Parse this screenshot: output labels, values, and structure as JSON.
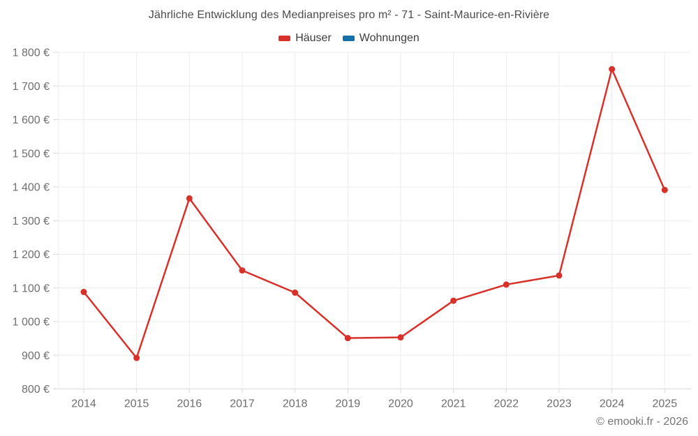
{
  "page": {
    "footer": "© emooki.fr - 2026"
  },
  "chart_data": {
    "type": "line",
    "title": "Jährliche Entwicklung des Medianpreises pro m² - 71 - Saint-Maurice-en-Rivière",
    "xlabel": "",
    "ylabel": "",
    "categories": [
      "2014",
      "2015",
      "2016",
      "2017",
      "2018",
      "2019",
      "2020",
      "2021",
      "2022",
      "2023",
      "2024",
      "2025"
    ],
    "series": [
      {
        "name": "Häuser",
        "color": "#d8312a",
        "values": [
          1088,
          892,
          1366,
          1152,
          1086,
          951,
          953,
          1062,
          1110,
          1137,
          1750,
          1391
        ]
      },
      {
        "name": "Wohnungen",
        "color": "#1470a8",
        "values": []
      }
    ],
    "ylim": [
      800,
      1800
    ],
    "y_tick_step": 100,
    "y_tick_labels": [
      "800 €",
      "900 €",
      "1 000 €",
      "1 100 €",
      "1 200 €",
      "1 300 €",
      "1 400 €",
      "1 500 €",
      "1 600 €",
      "1 700 €",
      "1 800 €"
    ],
    "grid": true,
    "legend_position": "top",
    "colors": {
      "grid": "#ececec",
      "axis": "#d9d9d9",
      "tick_label": "#6e6e6e",
      "title": "#4b4b4b"
    }
  }
}
